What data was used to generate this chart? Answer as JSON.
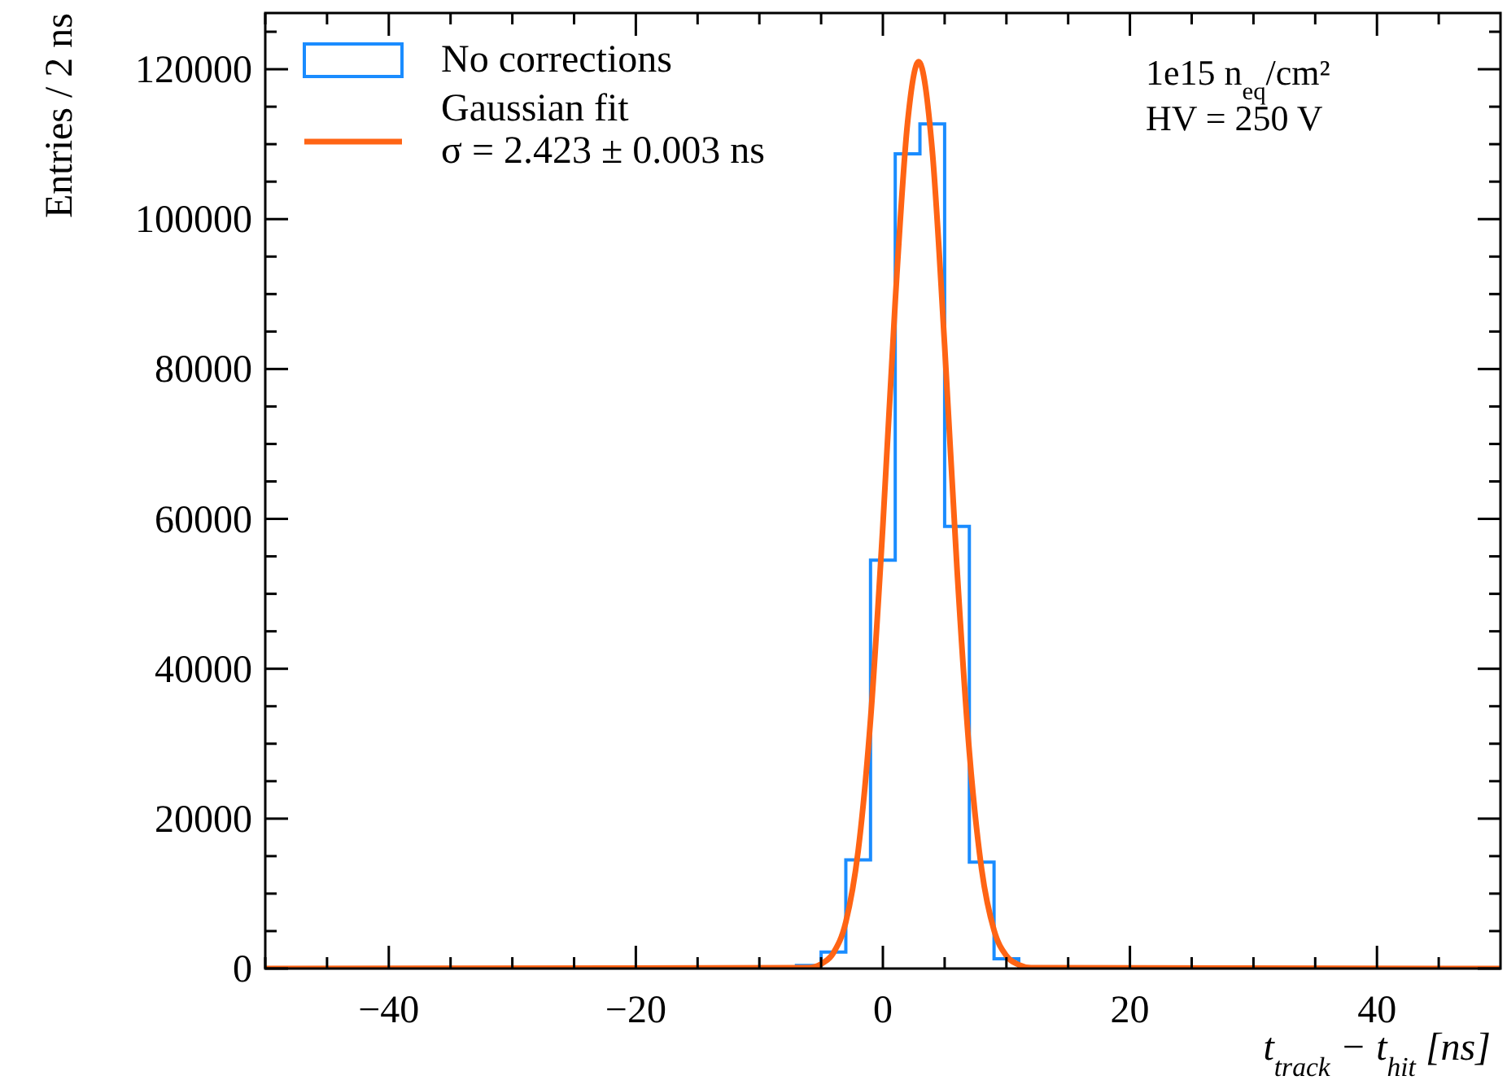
{
  "chart_data": {
    "type": "histogram",
    "xlabel": "t$_{track}$ − t$_{hit}$ [ns]",
    "ylabel": "Entries / 2 ns",
    "xlim": [
      -50,
      50
    ],
    "ylim": [
      0,
      127500
    ],
    "xticks": [
      {
        "value": -50,
        "label": null
      },
      {
        "value": -45,
        "label": null
      },
      -40,
      {
        "value": -35,
        "label": null
      },
      {
        "value": -30,
        "label": null
      },
      {
        "value": -25,
        "label": null
      },
      -20,
      {
        "value": -15,
        "label": null
      },
      {
        "value": -10,
        "label": null
      },
      {
        "value": -5,
        "label": null
      },
      0,
      {
        "value": 5,
        "label": null
      },
      {
        "value": 10,
        "label": null
      },
      {
        "value": 15,
        "label": null
      },
      20,
      {
        "value": 25,
        "label": null
      },
      {
        "value": 30,
        "label": null
      },
      {
        "value": 35,
        "label": null
      },
      40,
      {
        "value": 45,
        "label": null
      }
    ],
    "yticks": [
      0,
      {
        "value": 5000,
        "label": null
      },
      {
        "value": 10000,
        "label": null
      },
      {
        "value": 15000,
        "label": null
      },
      20000,
      {
        "value": 25000,
        "label": null
      },
      {
        "value": 30000,
        "label": null
      },
      {
        "value": 35000,
        "label": null
      },
      40000,
      {
        "value": 45000,
        "label": null
      },
      {
        "value": 50000,
        "label": null
      },
      {
        "value": 55000,
        "label": null
      },
      60000,
      {
        "value": 65000,
        "label": null
      },
      {
        "value": 70000,
        "label": null
      },
      {
        "value": 75000,
        "label": null
      },
      80000,
      {
        "value": 85000,
        "label": null
      },
      {
        "value": 90000,
        "label": null
      },
      {
        "value": 95000,
        "label": null
      },
      100000,
      {
        "value": 105000,
        "label": null
      },
      {
        "value": 110000,
        "label": null
      },
      {
        "value": 115000,
        "label": null
      },
      120000,
      {
        "value": 125000,
        "label": null
      }
    ],
    "legend": "top left",
    "grid": false,
    "annotations": [
      "1e15 n$_{eq}$/cm²",
      "HV = 250 V"
    ],
    "series": [
      {
        "type": "histogram",
        "name": "No corrections",
        "color": "#1a8cff",
        "bins": [
          -7,
          -5,
          -3,
          -1,
          1,
          3,
          5,
          7,
          9,
          11,
          13
        ],
        "values": [
          400,
          2200,
          14500,
          54500,
          108700,
          112700,
          59000,
          14200,
          1300,
          100
        ]
      },
      {
        "type": "line",
        "name": "Gaussian fit\nσ = 2.423 ± 0.003 ns",
        "color": "#ff6414",
        "x": [
          -50,
          -6,
          -5,
          -4,
          -3,
          -2,
          -1,
          0,
          1,
          2,
          2.9,
          4,
          5,
          6,
          7,
          8,
          9,
          10,
          11,
          12,
          50
        ],
        "values": [
          0,
          100,
          600,
          2100,
          6200,
          15700,
          33200,
          59100,
          89000,
          112900,
          121000,
          109100,
          83100,
          53400,
          28900,
          13200,
          5100,
          1700,
          500,
          100,
          0
        ]
      }
    ]
  }
}
